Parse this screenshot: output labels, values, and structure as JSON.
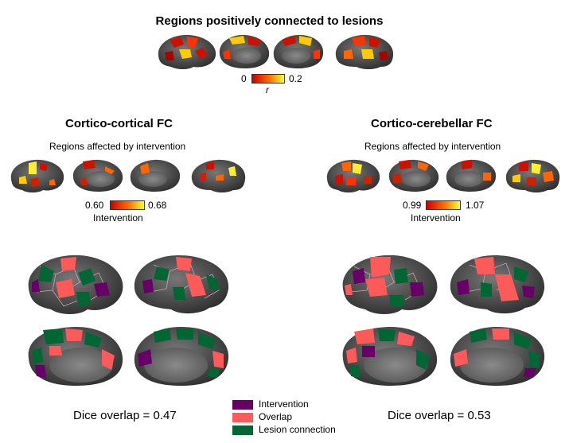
{
  "top": {
    "title": "Regions positively connected to lesions",
    "colorbar": {
      "min": "0",
      "max": "0.2",
      "label": "r"
    }
  },
  "left": {
    "title": "Cortico-cortical FC",
    "subtitle": "Regions affected  by intervention",
    "colorbar": {
      "min": "0.60",
      "max": "0.68",
      "label": "Intervention"
    },
    "dice": "Dice overlap = 0.47"
  },
  "right": {
    "title": "Cortico-cerebellar FC",
    "subtitle": "Regions affected  by intervention",
    "colorbar": {
      "min": "0.99",
      "max": "1.07",
      "label": "Intervention"
    },
    "dice": "Dice overlap = 0.53"
  },
  "legend": {
    "items": [
      {
        "label": "Intervention",
        "color": "#660066"
      },
      {
        "label": "Overlap",
        "color": "#ff5a5a"
      },
      {
        "label": "Lesion connection",
        "color": "#006633"
      }
    ]
  },
  "colors": {
    "cortex": "#4a4a4a",
    "medial_wall": "#6e6e6e",
    "hot_low": "#cc1100",
    "hot_high": "#ffff33"
  }
}
